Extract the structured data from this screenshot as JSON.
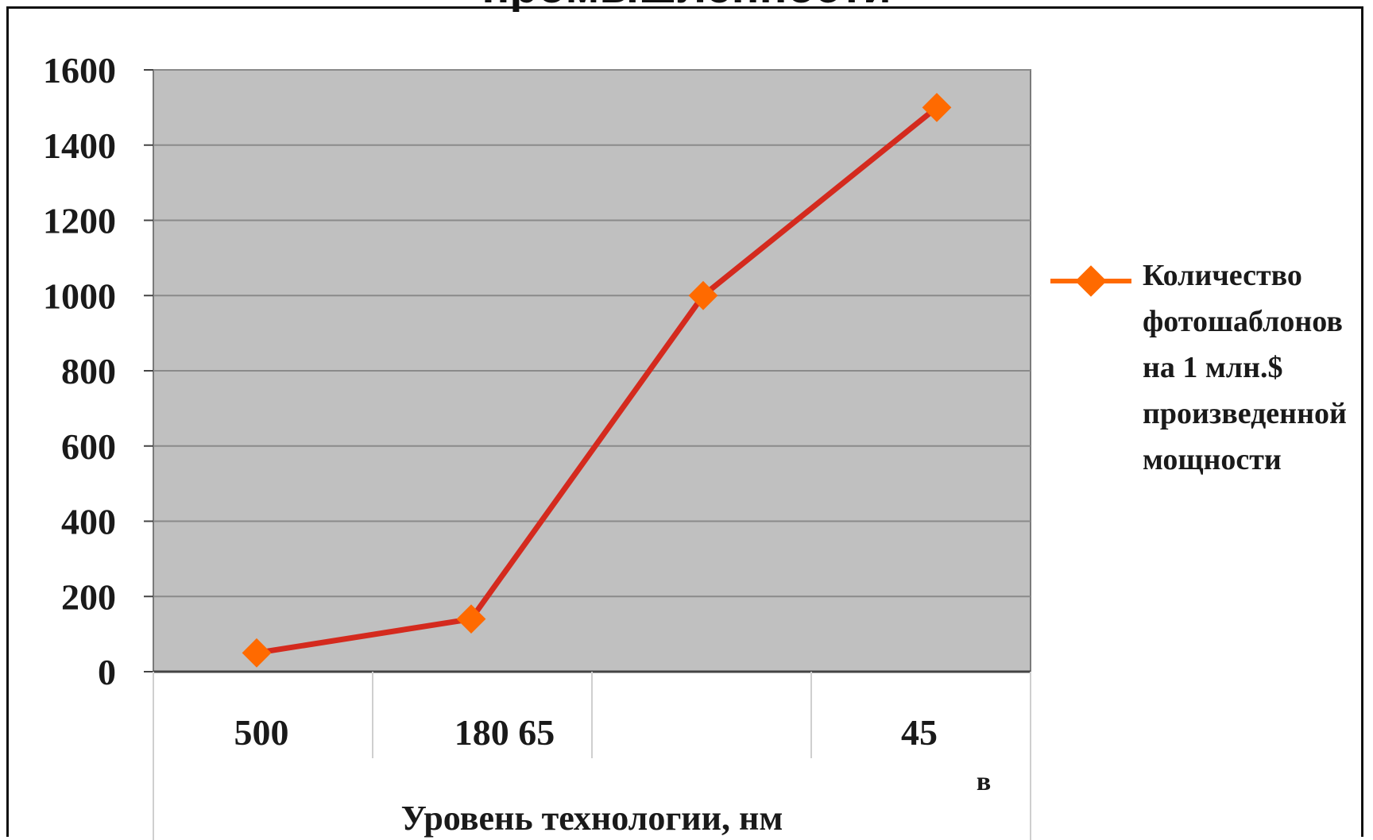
{
  "chart_data": {
    "type": "line",
    "title": "промышленности",
    "xlabel": "Уровень технологии,  нм",
    "ylabel": "",
    "categories": [
      "500",
      "180 65",
      "",
      "45"
    ],
    "series": [
      {
        "name": "Количество фотошаблонов на 1 млн.$ произведенной мощности",
        "values": [
          50,
          140,
          1000,
          1500
        ]
      }
    ],
    "ylim": [
      0,
      1600
    ],
    "yticks": [
      0,
      200,
      400,
      600,
      800,
      1000,
      1200,
      1400,
      1600
    ],
    "grid": true,
    "legend": "right",
    "annotation": "в",
    "colors": {
      "line": "#d42a1e",
      "marker": "#ff6a00",
      "plot_background": "#c0c0c0",
      "gridline": "#8a8a8a"
    }
  },
  "legend": {
    "marker_icon": "orange-diamond-line-icon"
  }
}
